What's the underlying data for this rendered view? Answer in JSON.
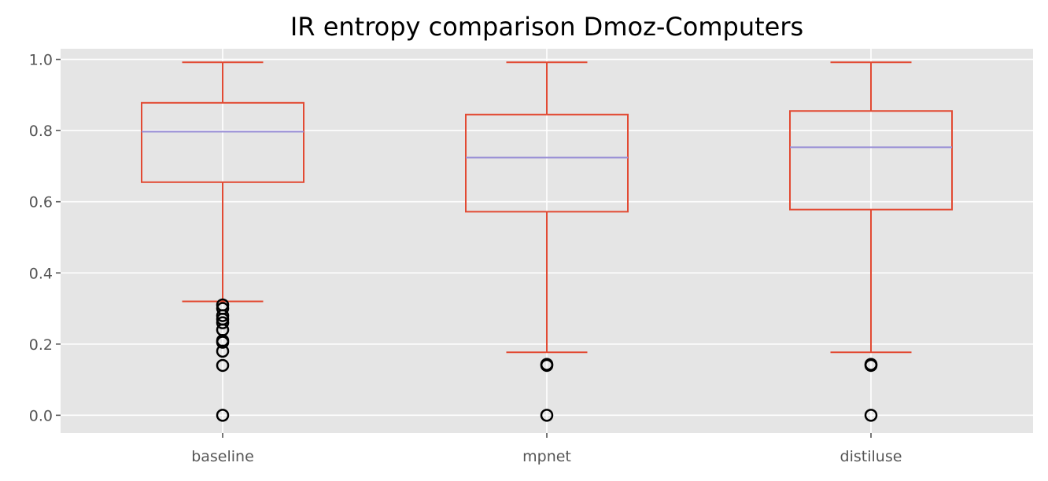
{
  "chart_data": {
    "type": "box",
    "title": "IR entropy comparison Dmoz-Computers",
    "xlabel": "",
    "ylabel": "",
    "categories": [
      "baseline",
      "mpnet",
      "distiluse"
    ],
    "ylim": [
      -0.05,
      1.03
    ],
    "yticks": [
      0.0,
      0.2,
      0.4,
      0.6,
      0.8,
      1.0
    ],
    "ytick_labels": [
      "0.0",
      "0.2",
      "0.4",
      "0.6",
      "0.8",
      "1.0"
    ],
    "grid": true,
    "boxes": [
      {
        "category": "baseline",
        "whisker_low": 0.32,
        "q1": 0.655,
        "median": 0.797,
        "q3": 0.878,
        "whisker_high": 0.992,
        "outliers": [
          0.31,
          0.3,
          0.28,
          0.27,
          0.26,
          0.24,
          0.21,
          0.205,
          0.18,
          0.14,
          0.0
        ]
      },
      {
        "category": "mpnet",
        "whisker_low": 0.177,
        "q1": 0.572,
        "median": 0.724,
        "q3": 0.845,
        "whisker_high": 0.992,
        "outliers": [
          0.143,
          0.14,
          0.0
        ]
      },
      {
        "category": "distiluse",
        "whisker_low": 0.177,
        "q1": 0.578,
        "median": 0.753,
        "q3": 0.855,
        "whisker_high": 0.992,
        "outliers": [
          0.143,
          0.14,
          0.0
        ]
      }
    ],
    "colors": {
      "background": "#e5e5e5",
      "grid": "#ffffff",
      "box": "#e24a33",
      "median": "#988ed5",
      "outlier": "#000000",
      "tick_text": "#555555"
    }
  }
}
